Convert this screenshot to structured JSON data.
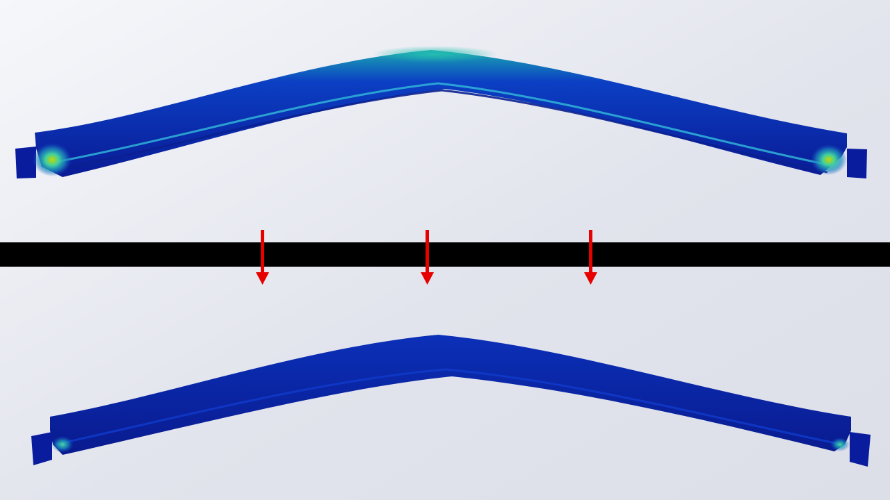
{
  "scene": {
    "background_gradient": [
      "#f6f7fa",
      "#e2e4ed",
      "#dcdee8"
    ],
    "divider_color": "#000000",
    "arrow_color": "#e60000",
    "arrow_count": 3,
    "arrow_direction": "down"
  },
  "beams": [
    {
      "state": "upper",
      "shape": "arched beam with end blocks",
      "base_color": "#0a1c9e",
      "highlight_colors": [
        "#1fa0b4",
        "#3fd0a0",
        "#b8d200"
      ],
      "stress_hotspots": [
        "left-end",
        "right-end",
        "top-center"
      ]
    },
    {
      "state": "lower",
      "shape": "arched beam with end blocks",
      "base_color": "#0a1c9e",
      "highlight_colors": [
        "#1fa0b4",
        "#3fd0a0"
      ],
      "stress_hotspots": [
        "left-end",
        "right-end"
      ]
    }
  ]
}
